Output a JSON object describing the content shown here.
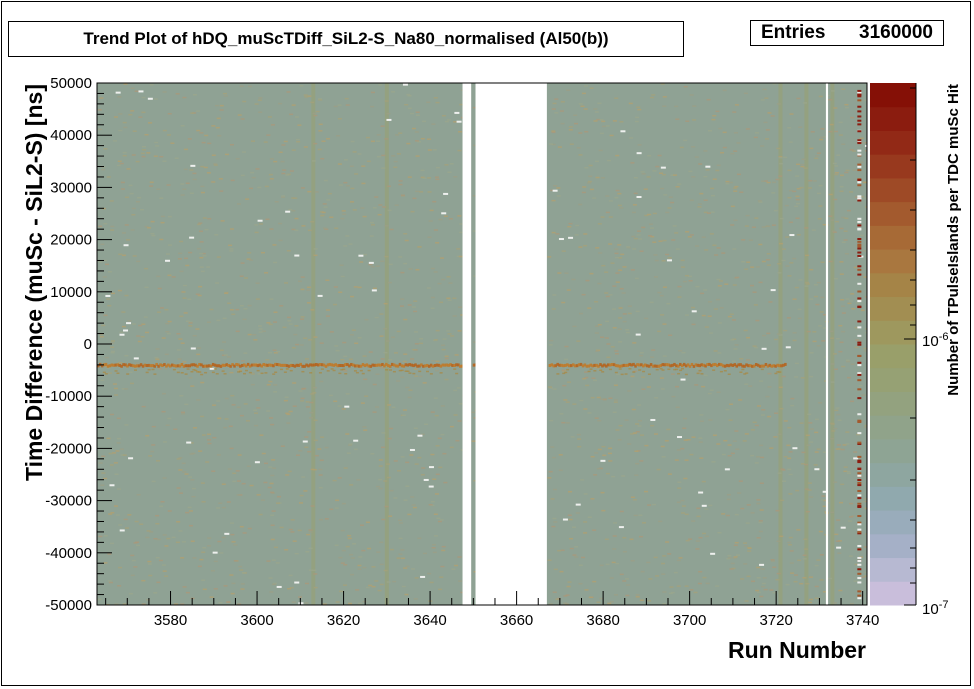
{
  "title": "Trend Plot of hDQ_muScTDiff_SiL2-S_Na80_normalised (Al50(b))",
  "stats": {
    "label": "Entries",
    "value": "3160000"
  },
  "chart_data": {
    "type": "heatmap",
    "title": "Trend Plot of hDQ_muScTDiff_SiL2-S_Na80_normalised (Al50(b))",
    "xlabel": "Run Number",
    "ylabel": "Time Difference (muSc - SiL2-S) [ns]",
    "zlabel": "Number of TPulseIslands per TDC muSc Hit",
    "xlim": [
      3563,
      3741
    ],
    "ylim": [
      -50000,
      50000
    ],
    "zscale": "log",
    "zlim_labels": [
      "10-7",
      "10-6"
    ],
    "xticks": [
      3580,
      3600,
      3620,
      3640,
      3660,
      3680,
      3700,
      3720,
      3740
    ],
    "xtick_labels": [
      "3580",
      "3600",
      "3620",
      "3640",
      "3660",
      "3680",
      "3700",
      "3720",
      "3740"
    ],
    "yticks": [
      50000,
      40000,
      30000,
      20000,
      10000,
      0,
      -10000,
      -20000,
      -30000,
      -40000,
      -50000
    ],
    "ytick_labels": [
      "50000",
      "40000",
      "30000",
      "20000",
      "10000",
      "0",
      "-10000",
      "-20000",
      "-30000",
      "-40000",
      "-50000"
    ],
    "background_level_color": "#8fa294",
    "peak": {
      "y": -4000,
      "color": "#b5641e"
    },
    "empty_run_ranges": [
      [
        3647.5,
        3649.5
      ],
      [
        3650.5,
        3667
      ],
      [
        3731.5,
        3732
      ]
    ],
    "bright_run_columns": [
      3613,
      3630,
      3721,
      3727,
      3733
    ]
  },
  "colors": {
    "palette": [
      "#c9bedb",
      "#b7b9d2",
      "#a5b0c7",
      "#99acbb",
      "#90a9ae",
      "#8ea6a0",
      "#8ea494",
      "#90a38a",
      "#93a27f",
      "#96a174",
      "#999f6a",
      "#9e985e",
      "#a28e52",
      "#a58447",
      "#a9773f",
      "#a76a36",
      "#a35a2e",
      "#9e4a26",
      "#98391e",
      "#922916",
      "#8b1c0f",
      "#851006"
    ]
  }
}
